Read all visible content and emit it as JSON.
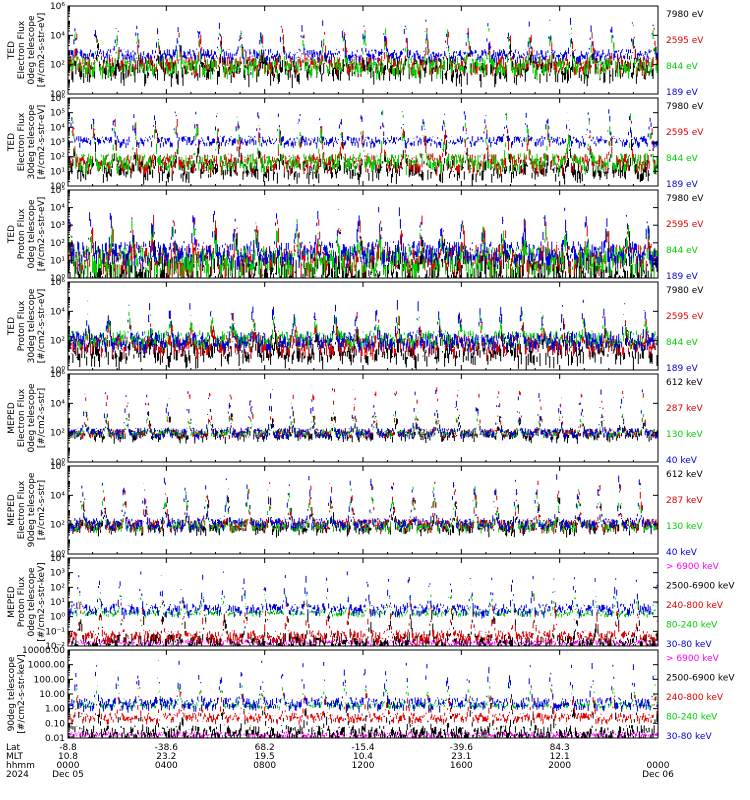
{
  "chart_data": [
    {
      "type": "line",
      "ylabel": "TED\nElectron Flux\n0deg telescope\n[#/cm2-s-str-eV]",
      "ylog": true,
      "ylim": [
        1,
        1000000
      ],
      "yticks": [
        {
          "v": 1,
          "label": "10⁰"
        },
        {
          "v": 100,
          "label": "10²"
        },
        {
          "v": 10000,
          "label": "10⁴"
        },
        {
          "v": 1000000,
          "label": "10⁶"
        }
      ],
      "series": [
        {
          "name": "7980 eV",
          "color": "#000000",
          "base": 80,
          "peak": 2000,
          "noise": 1.2
        },
        {
          "name": "2595 eV",
          "color": "#e00000",
          "base": 150,
          "peak": 30000,
          "noise": 0.9
        },
        {
          "name": "844 eV",
          "color": "#00d000",
          "base": 120,
          "peak": 40000,
          "noise": 0.9
        },
        {
          "name": "189 eV",
          "color": "#0000e0",
          "base": 600,
          "peak": 120000,
          "noise": 0.6
        }
      ]
    },
    {
      "type": "line",
      "ylabel": "TED\nElectron Flux\n30deg telescope\n[#/cm2-s-str-eV]",
      "ylog": true,
      "ylim": [
        1,
        1000000
      ],
      "yticks": [
        {
          "v": 1,
          "label": "10⁰"
        },
        {
          "v": 10,
          "label": "10¹"
        },
        {
          "v": 100,
          "label": "10²"
        },
        {
          "v": 1000,
          "label": "10³"
        },
        {
          "v": 10000,
          "label": "10⁴"
        },
        {
          "v": 100000,
          "label": "10⁵"
        },
        {
          "v": 1000000,
          "label": "10⁶"
        }
      ],
      "series": [
        {
          "name": "7980 eV",
          "color": "#000000",
          "base": 20,
          "peak": 3000,
          "noise": 1.0
        },
        {
          "name": "2595 eV",
          "color": "#e00000",
          "base": 60,
          "peak": 40000,
          "noise": 0.9
        },
        {
          "name": "844 eV",
          "color": "#00d000",
          "base": 60,
          "peak": 60000,
          "noise": 0.9
        },
        {
          "name": "189 eV",
          "color": "#0000e0",
          "base": 1500,
          "peak": 200000,
          "noise": 0.5
        }
      ]
    },
    {
      "type": "line",
      "ylabel": "TED\nProton Flux\n0deg telescope\n[#/cm2-s-str-eV]",
      "ylog": true,
      "ylim": [
        1,
        100000
      ],
      "yticks": [
        {
          "v": 1,
          "label": "10⁰"
        },
        {
          "v": 10,
          "label": "10¹"
        },
        {
          "v": 100,
          "label": "10²"
        },
        {
          "v": 1000,
          "label": "10³"
        },
        {
          "v": 10000,
          "label": "10⁴"
        },
        {
          "v": 100000,
          "label": "10⁵"
        }
      ],
      "series": [
        {
          "name": "7980 eV",
          "color": "#000000",
          "base": 5,
          "peak": 300,
          "noise": 1.6
        },
        {
          "name": "2595 eV",
          "color": "#e00000",
          "base": 20,
          "peak": 2000,
          "noise": 1.2
        },
        {
          "name": "844 eV",
          "color": "#00d000",
          "base": 15,
          "peak": 1500,
          "noise": 1.3
        },
        {
          "name": "189 eV",
          "color": "#0000e0",
          "base": 40,
          "peak": 8000,
          "noise": 1.0
        }
      ]
    },
    {
      "type": "line",
      "ylabel": "TED\nProton Flux\n30deg telescope\n[#/cm2-s-str-eV]",
      "ylog": true,
      "ylim": [
        1,
        1000000
      ],
      "yticks": [
        {
          "v": 1,
          "label": "10⁰"
        },
        {
          "v": 100,
          "label": "10²"
        },
        {
          "v": 10000,
          "label": "10⁴"
        },
        {
          "v": 1000000,
          "label": "10⁶"
        }
      ],
      "series": [
        {
          "name": "7980 eV",
          "color": "#000000",
          "base": 30,
          "peak": 1000,
          "noise": 1.2
        },
        {
          "name": "2595 eV",
          "color": "#e00000",
          "base": 80,
          "peak": 5000,
          "noise": 1.0
        },
        {
          "name": "844 eV",
          "color": "#00d000",
          "base": 200,
          "peak": 8000,
          "noise": 0.8
        },
        {
          "name": "189 eV",
          "color": "#0000e0",
          "base": 150,
          "peak": 50000,
          "noise": 0.9
        }
      ]
    },
    {
      "type": "line",
      "ylabel": "MEPED\nElectron Flux\n0deg telescope\n[#/cm2-s-str]",
      "ylog": true,
      "ylim": [
        1,
        1000000
      ],
      "yticks": [
        {
          "v": 1,
          "label": "10⁰"
        },
        {
          "v": 100,
          "label": "10²"
        },
        {
          "v": 10000,
          "label": "10⁴"
        },
        {
          "v": 1000000,
          "label": "10⁶"
        }
      ],
      "series": [
        {
          "name": "612 keV",
          "color": "#000000",
          "base": 100,
          "peak": 3000,
          "noise": 0.6
        },
        {
          "name": "287 keV",
          "color": "#e00000",
          "base": 110,
          "peak": 200000,
          "noise": 0.4
        },
        {
          "name": "130 keV",
          "color": "#00d000",
          "base": 100,
          "peak": 3000,
          "noise": 0.3
        },
        {
          "name": "40 keV",
          "color": "#0000e0",
          "base": 120,
          "peak": 100000,
          "noise": 0.5
        }
      ]
    },
    {
      "type": "line",
      "ylabel": "MEPED\nElectron Flux\n90deg telescope\n[#/cm2-s-str]",
      "ylog": true,
      "ylim": [
        1,
        1000000
      ],
      "yticks": [
        {
          "v": 1,
          "label": "10⁰"
        },
        {
          "v": 100,
          "label": "10²"
        },
        {
          "v": 10000,
          "label": "10⁴"
        },
        {
          "v": 1000000,
          "label": "10⁶"
        }
      ],
      "series": [
        {
          "name": "612 keV",
          "color": "#000000",
          "base": 100,
          "peak": 10000,
          "noise": 0.7
        },
        {
          "name": "287 keV",
          "color": "#e00000",
          "base": 120,
          "peak": 80000,
          "noise": 0.6
        },
        {
          "name": "130 keV",
          "color": "#00d000",
          "base": 100,
          "peak": 40000,
          "noise": 0.5
        },
        {
          "name": "40 keV",
          "color": "#0000e0",
          "base": 150,
          "peak": 300000,
          "noise": 0.6
        }
      ]
    },
    {
      "type": "line",
      "ylabel": "MEPED\nProton Flux\n0deg telescope\n[#/cm2-s-str-keV]",
      "ylog": true,
      "ylim": [
        0.01,
        10000
      ],
      "yticks": [
        {
          "v": 0.01,
          "label": "10⁻²"
        },
        {
          "v": 0.1,
          "label": "10⁻¹"
        },
        {
          "v": 1,
          "label": "10⁰"
        },
        {
          "v": 10,
          "label": "10¹"
        },
        {
          "v": 100,
          "label": "10²"
        },
        {
          "v": 1000,
          "label": "10³"
        },
        {
          "v": 10000,
          "label": "10⁴"
        }
      ],
      "series": [
        {
          "name": "> 6900 keV",
          "color": "#ff00ff",
          "base": 0.02,
          "peak": 0.02,
          "noise": 0.3
        },
        {
          "name": "2500-6900 keV",
          "color": "#000000",
          "base": 0.03,
          "peak": 5,
          "noise": 0.8
        },
        {
          "name": "240-800 keV",
          "color": "#e00000",
          "base": 0.06,
          "peak": 20,
          "noise": 0.6
        },
        {
          "name": "80-240 keV",
          "color": "#00d000",
          "base": 2,
          "peak": 50,
          "noise": 0.3
        },
        {
          "name": "30-80 keV",
          "color": "#0000e0",
          "base": 4,
          "peak": 1000,
          "noise": 0.6
        }
      ]
    },
    {
      "type": "line",
      "ylabel": "90deg telescope\n[#/cm2-s-str-keV]",
      "ylog": true,
      "ylim": [
        0.01,
        10000
      ],
      "yticks": [
        {
          "v": 0.01,
          "label": "0.01"
        },
        {
          "v": 0.1,
          "label": "0.10"
        },
        {
          "v": 1,
          "label": "1.00"
        },
        {
          "v": 10,
          "label": "10.00"
        },
        {
          "v": 100,
          "label": "100.00"
        },
        {
          "v": 1000,
          "label": "1000.00"
        },
        {
          "v": 10000,
          "label": "10000.00"
        }
      ],
      "series": [
        {
          "name": "> 6900 keV",
          "color": "#ff00ff",
          "base": 0.02,
          "peak": 0.02,
          "noise": 0.3
        },
        {
          "name": "2500-6900 keV",
          "color": "#000000",
          "base": 0.03,
          "peak": 5,
          "noise": 0.8
        },
        {
          "name": "240-800 keV",
          "color": "#e00000",
          "base": 0.3,
          "peak": 30,
          "noise": 0.5
        },
        {
          "name": "80-240 keV",
          "color": "#00d000",
          "base": 2,
          "peak": 60,
          "noise": 0.3
        },
        {
          "name": "30-80 keV",
          "color": "#0000e0",
          "base": 3,
          "peak": 2000,
          "noise": 0.6
        }
      ]
    }
  ],
  "xaxis": {
    "row_labels": [
      "Lat",
      "MLT",
      "hhmm",
      "2024"
    ],
    "ticks": [
      {
        "hours": 0,
        "lat": "-8.8",
        "mlt": "10.8",
        "hhmm": "0000",
        "date": "Dec 05"
      },
      {
        "hours": 4,
        "lat": "-38.6",
        "mlt": "23.2",
        "hhmm": "0400",
        "date": ""
      },
      {
        "hours": 8,
        "lat": "68.2",
        "mlt": "19.5",
        "hhmm": "0800",
        "date": ""
      },
      {
        "hours": 12,
        "lat": "-15.4",
        "mlt": "10.4",
        "hhmm": "1200",
        "date": ""
      },
      {
        "hours": 16,
        "lat": "-39.6",
        "mlt": "23.1",
        "hhmm": "1600",
        "date": ""
      },
      {
        "hours": 20,
        "lat": "84.3",
        "mlt": "12.1",
        "hhmm": "2000",
        "date": ""
      },
      {
        "hours": 24,
        "lat": "",
        "mlt": "",
        "hhmm": "0000",
        "date": "Dec 06"
      }
    ],
    "range_hours": [
      0,
      24
    ],
    "orbit_period_hours": 1.68
  }
}
